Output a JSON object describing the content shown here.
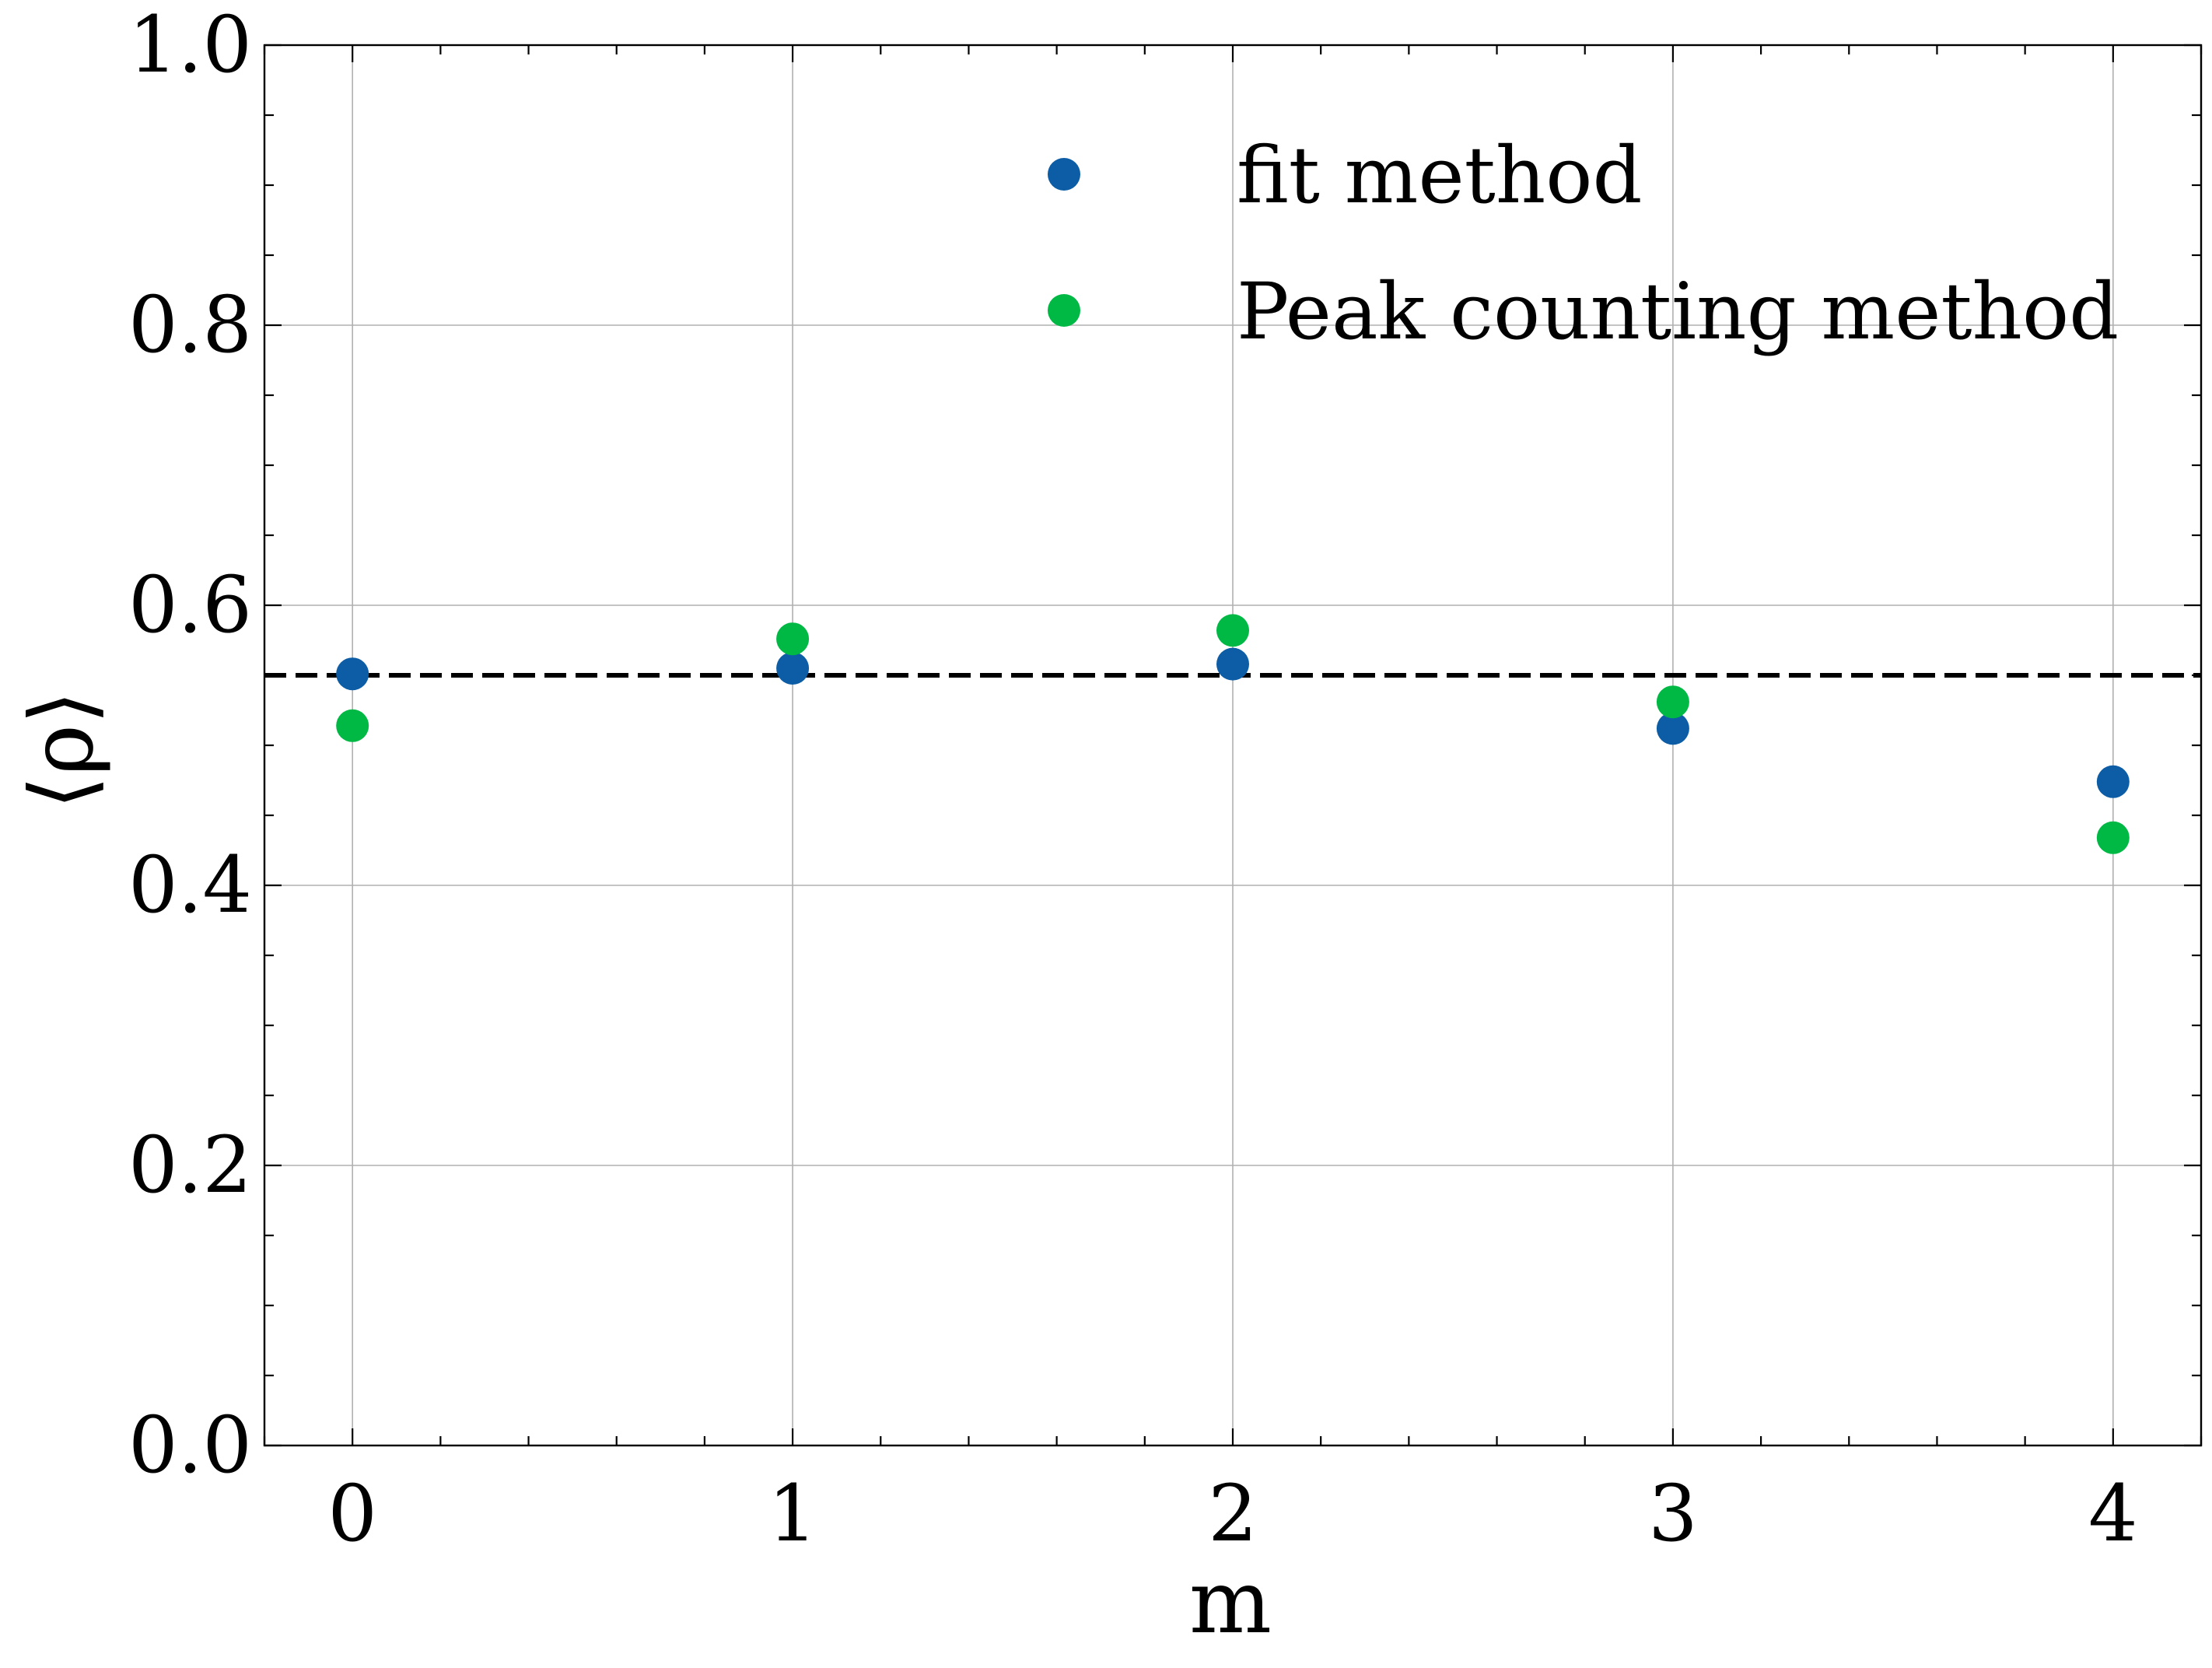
{
  "chart_data": {
    "type": "scatter",
    "title": "",
    "xlabel": "m",
    "ylabel": "⟨ρ⟩",
    "xlim": [
      -0.2,
      4.2
    ],
    "ylim": [
      0.0,
      1.0
    ],
    "x_ticks": [
      0,
      1,
      2,
      3,
      4
    ],
    "x_tick_labels": [
      "0",
      "1",
      "2",
      "3",
      "4"
    ],
    "y_ticks": [
      0.0,
      0.2,
      0.4,
      0.6,
      0.8,
      1.0
    ],
    "y_tick_labels": [
      "0.0",
      "0.2",
      "0.4",
      "0.6",
      "0.8",
      "1.0"
    ],
    "grid": true,
    "legend_position": "top-right",
    "series": [
      {
        "name": "fit method",
        "color": "#0C5DA5",
        "x": [
          0,
          1,
          2,
          3,
          4
        ],
        "y": [
          0.551,
          0.555,
          0.558,
          0.512,
          0.474
        ]
      },
      {
        "name": "Peak counting method",
        "color": "#00B945",
        "x": [
          0,
          1,
          2,
          3,
          4
        ],
        "y": [
          0.514,
          0.576,
          0.582,
          0.531,
          0.434
        ]
      }
    ],
    "reference_line": {
      "y": 0.55,
      "style": "dashed",
      "color": "#000000"
    }
  }
}
